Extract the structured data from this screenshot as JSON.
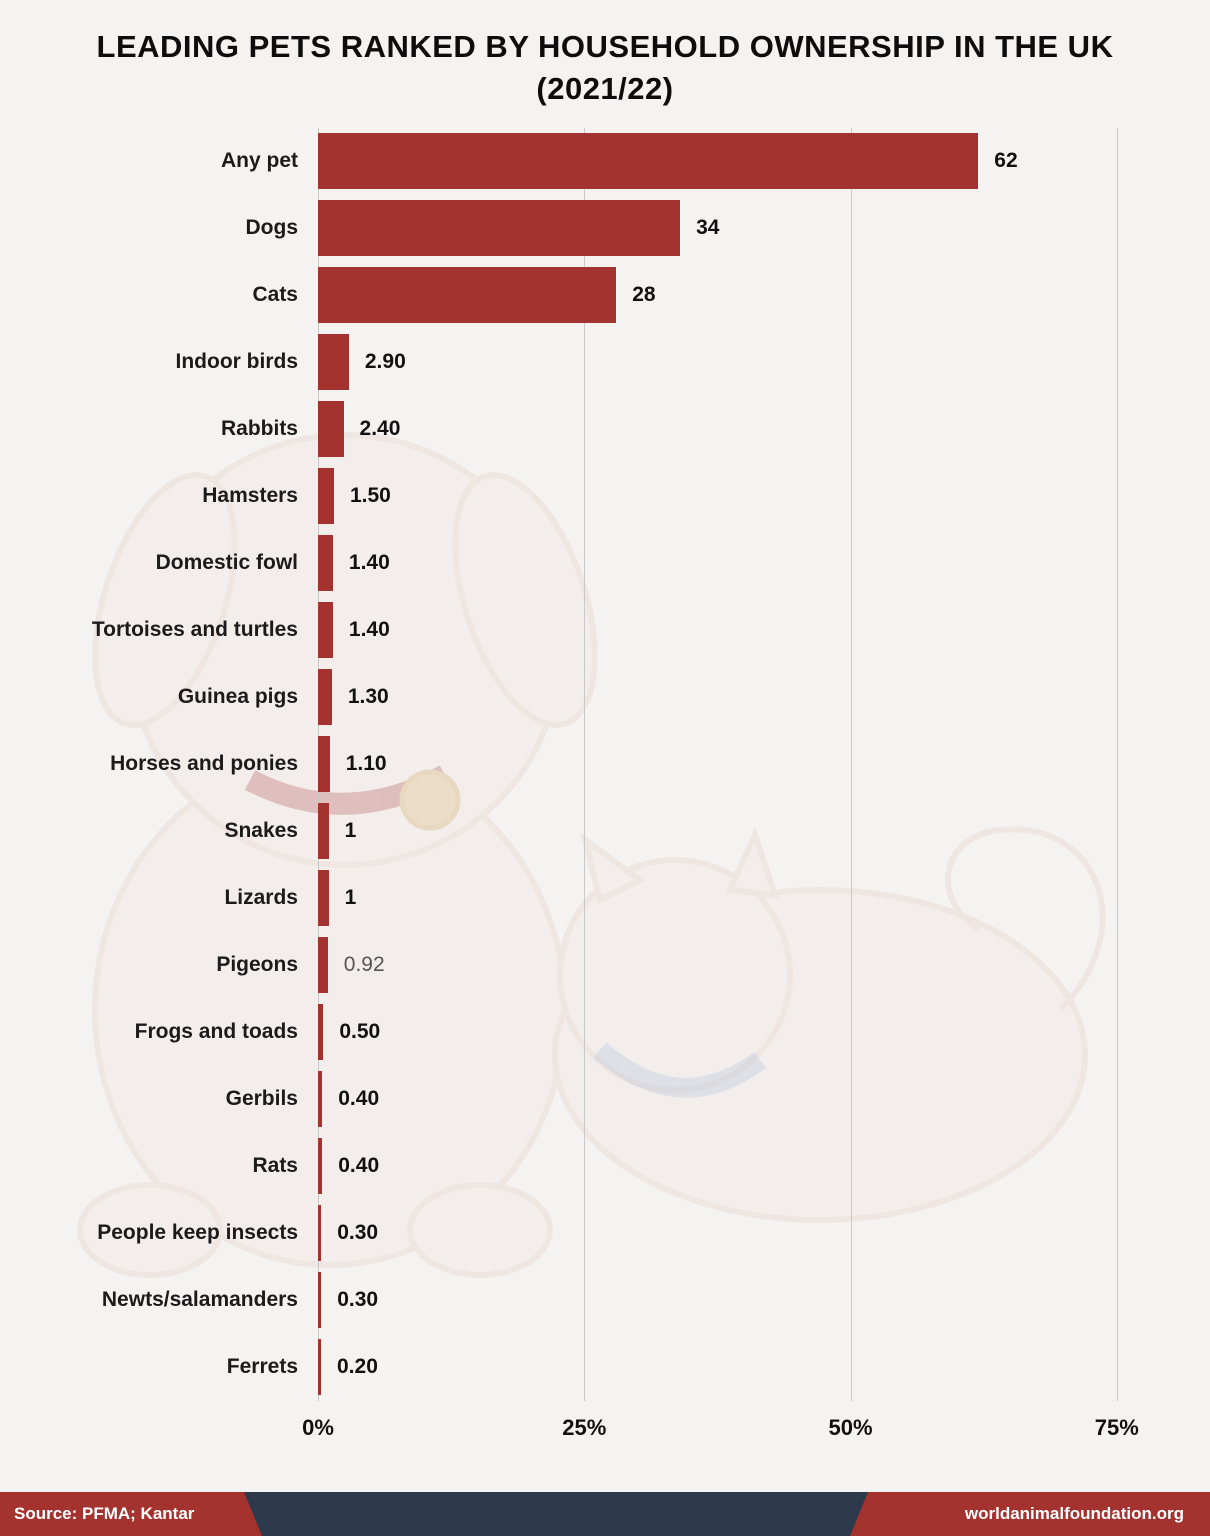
{
  "title": "LEADING PETS RANKED BY HOUSEHOLD OWNERSHIP IN THE UK (2021/22)",
  "chart_data": {
    "type": "bar",
    "orientation": "horizontal",
    "title": "LEADING PETS RANKED BY HOUSEHOLD OWNERSHIP IN THE UK (2021/22)",
    "categories": [
      "Any pet",
      "Dogs",
      "Cats",
      "Indoor birds",
      "Rabbits",
      "Hamsters",
      "Domestic fowl",
      "Tortoises and turtles",
      "Guinea pigs",
      "Horses and ponies",
      "Snakes",
      "Lizards",
      "Pigeons",
      "Frogs and toads",
      "Gerbils",
      "Rats",
      "People keep insects",
      "Newts/salamanders",
      "Ferrets"
    ],
    "values": [
      62,
      34,
      28,
      2.9,
      2.4,
      1.5,
      1.4,
      1.4,
      1.3,
      1.1,
      1,
      1,
      0.92,
      0.5,
      0.4,
      0.4,
      0.3,
      0.3,
      0.2
    ],
    "value_labels": [
      "62",
      "34",
      "28",
      "2.90",
      "2.40",
      "1.50",
      "1.40",
      "1.40",
      "1.30",
      "1.10",
      "1",
      "1",
      "0.92",
      "0.50",
      "0.40",
      "0.40",
      "0.30",
      "0.30",
      "0.20"
    ],
    "muted_value_indices": [
      12
    ],
    "x_ticks": [
      {
        "label": "0%",
        "value": 0
      },
      {
        "label": "25%",
        "value": 25
      },
      {
        "label": "50%",
        "value": 50
      },
      {
        "label": "75%",
        "value": 75
      }
    ],
    "xlim": [
      0,
      80
    ],
    "xlabel": "",
    "ylabel": "",
    "grid": true,
    "legend": false
  },
  "colors": {
    "bar": "#A43330",
    "background": "#F5F2F2",
    "footer_bg": "#2C3A4B",
    "footer_accent": "#A43330",
    "grid": "#C9C9C9"
  },
  "footer": {
    "source": "Source: PFMA; Kantar",
    "site": "worldanimalfoundation.org"
  }
}
